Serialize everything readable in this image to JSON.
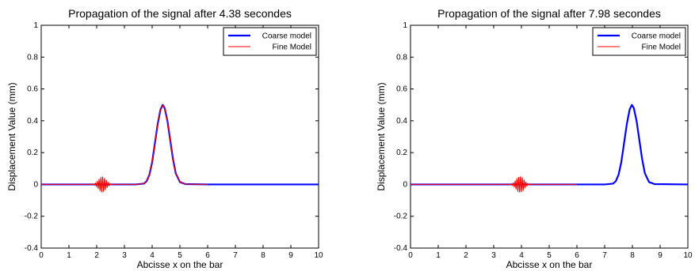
{
  "chart_data": [
    {
      "type": "line",
      "title": "Propagation of the signal after 4.38 secondes",
      "xlabel": "Abcisse x on the bar",
      "ylabel": "Displacement Value (mm)",
      "xlim": [
        0,
        10
      ],
      "ylim": [
        -0.4,
        1
      ],
      "xticks": [
        "0",
        "1",
        "2",
        "3",
        "4",
        "5",
        "6",
        "7",
        "8",
        "9",
        "10"
      ],
      "yticks": [
        "-0.4",
        "-0.2",
        "0",
        "0.2",
        "0.4",
        "0.6",
        "0.8",
        "1"
      ],
      "grid": false,
      "legend_position": "top-right",
      "series": [
        {
          "name": "Coarse model",
          "color": "#0000ff",
          "style": "thick",
          "x": [
            0,
            3.4,
            3.7,
            3.8,
            3.9,
            4.0,
            4.1,
            4.2,
            4.3,
            4.38,
            4.45,
            4.55,
            4.65,
            4.75,
            4.85,
            5.0,
            5.2,
            6.0,
            10
          ],
          "y": [
            0,
            0,
            0.005,
            0.02,
            0.06,
            0.14,
            0.26,
            0.38,
            0.47,
            0.5,
            0.48,
            0.4,
            0.28,
            0.16,
            0.07,
            0.015,
            0.002,
            0,
            0
          ]
        },
        {
          "name": "Fine Model",
          "color": "#ff0000",
          "style": "thin",
          "x": [
            0,
            1.8,
            2.6,
            3.4,
            3.7,
            3.8,
            3.9,
            4.0,
            4.1,
            4.2,
            4.3,
            4.38,
            4.45,
            4.55,
            4.65,
            4.75,
            4.85,
            5.0,
            5.2,
            6.0
          ],
          "y": [
            0,
            0,
            0,
            0,
            0.005,
            0.02,
            0.06,
            0.14,
            0.26,
            0.38,
            0.47,
            0.5,
            0.48,
            0.4,
            0.28,
            0.16,
            0.07,
            0.015,
            0.002,
            0
          ],
          "packet": {
            "center": 2.2,
            "half_width": 0.42,
            "amplitude": 0.045,
            "wavelength": 0.065
          }
        }
      ]
    },
    {
      "type": "line",
      "title": "Propagation of the signal after 7.98 secondes",
      "xlabel": "Abcisse x on the bar",
      "ylabel": "Displacement Value (mm)",
      "xlim": [
        0,
        10
      ],
      "ylim": [
        -0.4,
        1
      ],
      "xticks": [
        "0",
        "1",
        "2",
        "3",
        "4",
        "5",
        "6",
        "7",
        "8",
        "9",
        "10"
      ],
      "yticks": [
        "-0.4",
        "-0.2",
        "0",
        "0.2",
        "0.4",
        "0.6",
        "0.8",
        "1"
      ],
      "grid": false,
      "legend_position": "top-right",
      "series": [
        {
          "name": "Coarse model",
          "color": "#0000ff",
          "style": "thick",
          "x": [
            0,
            7.0,
            7.3,
            7.4,
            7.5,
            7.6,
            7.7,
            7.8,
            7.9,
            7.98,
            8.05,
            8.15,
            8.25,
            8.35,
            8.45,
            8.6,
            8.8,
            10
          ],
          "y": [
            0,
            0,
            0.005,
            0.02,
            0.06,
            0.14,
            0.26,
            0.38,
            0.47,
            0.5,
            0.48,
            0.4,
            0.28,
            0.16,
            0.07,
            0.015,
            0.002,
            0
          ]
        },
        {
          "name": "Fine Model",
          "color": "#ff0000",
          "style": "thin",
          "x": [
            0,
            6.0
          ],
          "y": [
            0,
            0
          ],
          "packet": {
            "center": 3.95,
            "half_width": 0.42,
            "amplitude": 0.05,
            "wavelength": 0.065
          }
        }
      ]
    }
  ]
}
